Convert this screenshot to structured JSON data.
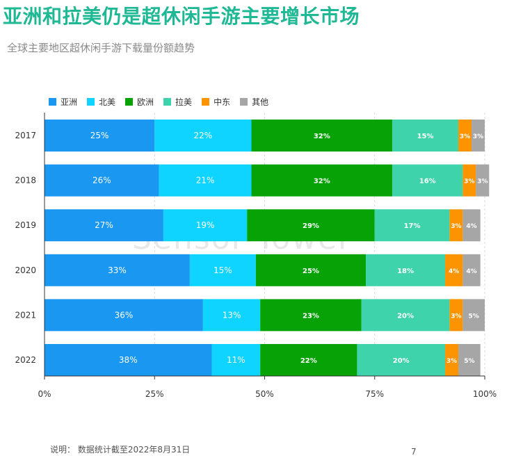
{
  "page": {
    "title": "亚洲和拉美仍是超休闲手游主要增长市场",
    "subtitle": "全球主要地区超休闲手游下载量份额趋势",
    "footnote": "说明：  数据统计截至2022年8月31日",
    "page_number": "7",
    "watermark": "Sensor Tower"
  },
  "colors": {
    "title": "#1fb894",
    "label_dark": "#ffffff"
  },
  "chart_data": {
    "type": "bar",
    "orientation": "horizontal",
    "stacked": true,
    "title": "",
    "xlabel": "",
    "ylabel": "",
    "xlim": [
      0,
      100
    ],
    "x_ticks": [
      "0%",
      "25%",
      "50%",
      "75%",
      "100%"
    ],
    "legend_position": "top-left",
    "grid": true,
    "categories": [
      "2017",
      "2018",
      "2019",
      "2020",
      "2021",
      "2022"
    ],
    "series": [
      {
        "name": "亚洲",
        "color": "#1a97f0",
        "values": [
          25,
          26,
          27,
          33,
          36,
          38
        ],
        "labels": [
          "25%",
          "26%",
          "27%",
          "33%",
          "36%",
          "38%"
        ]
      },
      {
        "name": "北美",
        "color": "#0fd4ff",
        "values": [
          22,
          21,
          19,
          15,
          13,
          11
        ],
        "labels": [
          "22%",
          "21%",
          "19%",
          "15%",
          "13%",
          "11%"
        ]
      },
      {
        "name": "欧洲",
        "color": "#07a306",
        "values": [
          32,
          32,
          29,
          25,
          23,
          22
        ],
        "labels": [
          "32%",
          "32%",
          "29%",
          "25%",
          "23%",
          "22%"
        ]
      },
      {
        "name": "拉美",
        "color": "#3ed3ab",
        "values": [
          15,
          16,
          17,
          18,
          20,
          20
        ],
        "labels": [
          "15%",
          "16%",
          "17%",
          "18%",
          "20%",
          "20%"
        ]
      },
      {
        "name": "中东",
        "color": "#fb9400",
        "values": [
          3,
          3,
          3,
          4,
          3,
          3
        ],
        "labels": [
          "3%",
          "3%",
          "3%",
          "4%",
          "3%",
          "3%"
        ]
      },
      {
        "name": "其他",
        "color": "#a6a6a6",
        "values": [
          3,
          3,
          4,
          4,
          5,
          5
        ],
        "labels": [
          "3%",
          "3%",
          "4%",
          "4%",
          "5%",
          "5%"
        ]
      }
    ]
  }
}
